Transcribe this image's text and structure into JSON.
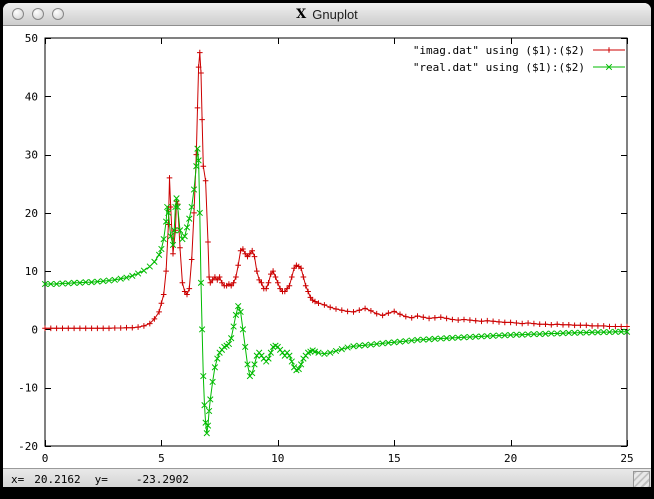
{
  "window": {
    "title": "Gnuplot",
    "title_icon": "X",
    "buttons": [
      "close",
      "minimize",
      "zoom"
    ]
  },
  "statusbar": {
    "x_label": "x=",
    "x_value": "20.2162",
    "y_label": "y=",
    "y_value": "-23.2902"
  },
  "colors": {
    "imag": "#cc0000",
    "real": "#00bb00",
    "axis": "#000000",
    "plot_background": "#ffffff"
  },
  "chart_data": {
    "type": "line",
    "title": "",
    "xlabel": "",
    "ylabel": "",
    "xlim": [
      0,
      25
    ],
    "ylim": [
      -20,
      50
    ],
    "xticks": [
      0,
      5,
      10,
      15,
      20,
      25
    ],
    "yticks": [
      -20,
      -10,
      0,
      10,
      20,
      30,
      40,
      50
    ],
    "grid": false,
    "legend_position": "top-right",
    "series": [
      {
        "name": "\"imag.dat\" using ($1):($2)",
        "color": "#cc0000",
        "marker": "plus",
        "points": [
          [
            0,
            0.2
          ],
          [
            0.25,
            0.2
          ],
          [
            0.5,
            0.2
          ],
          [
            0.75,
            0.2
          ],
          [
            1,
            0.2
          ],
          [
            1.25,
            0.2
          ],
          [
            1.5,
            0.2
          ],
          [
            1.75,
            0.2
          ],
          [
            2,
            0.2
          ],
          [
            2.25,
            0.2
          ],
          [
            2.5,
            0.2
          ],
          [
            2.75,
            0.2
          ],
          [
            3,
            0.25
          ],
          [
            3.25,
            0.25
          ],
          [
            3.5,
            0.3
          ],
          [
            3.75,
            0.3
          ],
          [
            4,
            0.4
          ],
          [
            4.25,
            0.6
          ],
          [
            4.5,
            1
          ],
          [
            4.7,
            1.8
          ],
          [
            4.9,
            3
          ],
          [
            5,
            4.5
          ],
          [
            5.1,
            6
          ],
          [
            5.2,
            10
          ],
          [
            5.3,
            18
          ],
          [
            5.35,
            26
          ],
          [
            5.4,
            21
          ],
          [
            5.5,
            13
          ],
          [
            5.6,
            17
          ],
          [
            5.65,
            22
          ],
          [
            5.7,
            21.5
          ],
          [
            5.8,
            14
          ],
          [
            5.9,
            8
          ],
          [
            6,
            6.5
          ],
          [
            6.1,
            6
          ],
          [
            6.2,
            7
          ],
          [
            6.3,
            12
          ],
          [
            6.4,
            20
          ],
          [
            6.5,
            30
          ],
          [
            6.55,
            38
          ],
          [
            6.6,
            45
          ],
          [
            6.65,
            47.5
          ],
          [
            6.7,
            44
          ],
          [
            6.75,
            36
          ],
          [
            6.8,
            28
          ],
          [
            6.9,
            25.5
          ],
          [
            7,
            15
          ],
          [
            7.05,
            9
          ],
          [
            7.1,
            8
          ],
          [
            7.2,
            8.5
          ],
          [
            7.3,
            9
          ],
          [
            7.4,
            8.5
          ],
          [
            7.5,
            9
          ],
          [
            7.6,
            8
          ],
          [
            7.7,
            7.5
          ],
          [
            7.8,
            7.5
          ],
          [
            7.9,
            7.8
          ],
          [
            8,
            7.5
          ],
          [
            8.1,
            8
          ],
          [
            8.2,
            9
          ],
          [
            8.3,
            11
          ],
          [
            8.4,
            13.5
          ],
          [
            8.5,
            13.8
          ],
          [
            8.6,
            13
          ],
          [
            8.7,
            12.5
          ],
          [
            8.8,
            13
          ],
          [
            8.9,
            13.5
          ],
          [
            9,
            12.5
          ],
          [
            9.1,
            10
          ],
          [
            9.2,
            8.5
          ],
          [
            9.3,
            8
          ],
          [
            9.4,
            7
          ],
          [
            9.5,
            7
          ],
          [
            9.6,
            8
          ],
          [
            9.7,
            9.5
          ],
          [
            9.8,
            10
          ],
          [
            9.9,
            9
          ],
          [
            10,
            8
          ],
          [
            10.1,
            7
          ],
          [
            10.2,
            6.5
          ],
          [
            10.3,
            6.5
          ],
          [
            10.4,
            7
          ],
          [
            10.5,
            7.5
          ],
          [
            10.6,
            9
          ],
          [
            10.7,
            10.5
          ],
          [
            10.8,
            11
          ],
          [
            10.9,
            10.8
          ],
          [
            11,
            10.5
          ],
          [
            11.1,
            9
          ],
          [
            11.2,
            7.5
          ],
          [
            11.3,
            6.5
          ],
          [
            11.4,
            5.5
          ],
          [
            11.5,
            5
          ],
          [
            11.6,
            4.8
          ],
          [
            11.75,
            4.5
          ],
          [
            12,
            4.2
          ],
          [
            12.25,
            3.8
          ],
          [
            12.5,
            3.5
          ],
          [
            12.75,
            3.3
          ],
          [
            13,
            3.1
          ],
          [
            13.25,
            3
          ],
          [
            13.5,
            3.3
          ],
          [
            13.75,
            3.6
          ],
          [
            14,
            3.2
          ],
          [
            14.25,
            2.7
          ],
          [
            14.5,
            2.4
          ],
          [
            14.75,
            2.8
          ],
          [
            15,
            3.1
          ],
          [
            15.25,
            2.6
          ],
          [
            15.5,
            2.2
          ],
          [
            15.75,
            2
          ],
          [
            16,
            2.3
          ],
          [
            16.25,
            2.1
          ],
          [
            16.5,
            1.9
          ],
          [
            16.75,
            2
          ],
          [
            17,
            2.1
          ],
          [
            17.25,
            1.9
          ],
          [
            17.5,
            1.7
          ],
          [
            17.75,
            1.6
          ],
          [
            18,
            1.7
          ],
          [
            18.25,
            1.6
          ],
          [
            18.5,
            1.5
          ],
          [
            18.75,
            1.4
          ],
          [
            19,
            1.5
          ],
          [
            19.25,
            1.4
          ],
          [
            19.5,
            1.3
          ],
          [
            19.75,
            1.2
          ],
          [
            20,
            1.2
          ],
          [
            20.25,
            1.1
          ],
          [
            20.5,
            1
          ],
          [
            20.75,
            1.1
          ],
          [
            21,
            1
          ],
          [
            21.25,
            0.9
          ],
          [
            21.5,
            0.9
          ],
          [
            21.75,
            0.8
          ],
          [
            22,
            0.9
          ],
          [
            22.25,
            0.8
          ],
          [
            22.5,
            0.8
          ],
          [
            22.75,
            0.7
          ],
          [
            23,
            0.7
          ],
          [
            23.25,
            0.7
          ],
          [
            23.5,
            0.6
          ],
          [
            23.75,
            0.6
          ],
          [
            24,
            0.6
          ],
          [
            24.25,
            0.5
          ],
          [
            24.5,
            0.5
          ],
          [
            24.75,
            0.5
          ],
          [
            25,
            0.5
          ]
        ]
      },
      {
        "name": "\"real.dat\" using ($1):($2)",
        "color": "#00bb00",
        "marker": "cross",
        "points": [
          [
            0,
            7.8
          ],
          [
            0.25,
            7.8
          ],
          [
            0.5,
            7.8
          ],
          [
            0.75,
            7.9
          ],
          [
            1,
            7.9
          ],
          [
            1.25,
            8
          ],
          [
            1.5,
            8
          ],
          [
            1.75,
            8.1
          ],
          [
            2,
            8.1
          ],
          [
            2.25,
            8.2
          ],
          [
            2.5,
            8.3
          ],
          [
            2.75,
            8.4
          ],
          [
            3,
            8.5
          ],
          [
            3.25,
            8.7
          ],
          [
            3.5,
            8.9
          ],
          [
            3.75,
            9.2
          ],
          [
            4,
            9.6
          ],
          [
            4.25,
            10.1
          ],
          [
            4.5,
            10.8
          ],
          [
            4.7,
            11.6
          ],
          [
            4.9,
            12.8
          ],
          [
            5,
            13.8
          ],
          [
            5.1,
            15.5
          ],
          [
            5.2,
            18.5
          ],
          [
            5.25,
            21
          ],
          [
            5.3,
            20
          ],
          [
            5.4,
            16
          ],
          [
            5.5,
            14.5
          ],
          [
            5.55,
            17
          ],
          [
            5.6,
            21
          ],
          [
            5.65,
            22.5
          ],
          [
            5.7,
            21
          ],
          [
            5.8,
            17
          ],
          [
            5.9,
            15.5
          ],
          [
            6,
            16
          ],
          [
            6.1,
            17.5
          ],
          [
            6.2,
            19
          ],
          [
            6.3,
            21
          ],
          [
            6.4,
            24
          ],
          [
            6.5,
            28
          ],
          [
            6.55,
            31
          ],
          [
            6.6,
            29
          ],
          [
            6.65,
            20
          ],
          [
            6.7,
            8
          ],
          [
            6.75,
            0
          ],
          [
            6.8,
            -8
          ],
          [
            6.85,
            -13
          ],
          [
            6.9,
            -16
          ],
          [
            6.95,
            -17.8
          ],
          [
            7,
            -16.5
          ],
          [
            7.05,
            -14
          ],
          [
            7.1,
            -12
          ],
          [
            7.2,
            -9
          ],
          [
            7.3,
            -6.5
          ],
          [
            7.4,
            -5
          ],
          [
            7.5,
            -4
          ],
          [
            7.6,
            -3.5
          ],
          [
            7.7,
            -3
          ],
          [
            7.8,
            -2.8
          ],
          [
            7.9,
            -2.5
          ],
          [
            8,
            -1.5
          ],
          [
            8.1,
            0.5
          ],
          [
            8.2,
            2.5
          ],
          [
            8.3,
            4
          ],
          [
            8.4,
            3
          ],
          [
            8.5,
            0
          ],
          [
            8.6,
            -3
          ],
          [
            8.7,
            -6
          ],
          [
            8.8,
            -8
          ],
          [
            8.9,
            -7.5
          ],
          [
            9,
            -6
          ],
          [
            9.1,
            -4.5
          ],
          [
            9.2,
            -4
          ],
          [
            9.3,
            -4.5
          ],
          [
            9.4,
            -5
          ],
          [
            9.5,
            -5.5
          ],
          [
            9.6,
            -5
          ],
          [
            9.7,
            -4
          ],
          [
            9.8,
            -3
          ],
          [
            9.9,
            -2.8
          ],
          [
            10,
            -3
          ],
          [
            10.1,
            -3.5
          ],
          [
            10.2,
            -4
          ],
          [
            10.3,
            -4.5
          ],
          [
            10.4,
            -4
          ],
          [
            10.5,
            -4.5
          ],
          [
            10.6,
            -5.5
          ],
          [
            10.7,
            -6.5
          ],
          [
            10.8,
            -7
          ],
          [
            10.9,
            -6.8
          ],
          [
            11,
            -6
          ],
          [
            11.1,
            -5
          ],
          [
            11.2,
            -4.5
          ],
          [
            11.3,
            -4
          ],
          [
            11.4,
            -3.8
          ],
          [
            11.5,
            -3.6
          ],
          [
            11.6,
            -3.8
          ],
          [
            11.75,
            -4
          ],
          [
            12,
            -4.2
          ],
          [
            12.25,
            -4
          ],
          [
            12.5,
            -3.7
          ],
          [
            12.75,
            -3.4
          ],
          [
            13,
            -3.1
          ],
          [
            13.25,
            -2.9
          ],
          [
            13.5,
            -2.8
          ],
          [
            13.75,
            -2.7
          ],
          [
            14,
            -2.6
          ],
          [
            14.25,
            -2.5
          ],
          [
            14.5,
            -2.4
          ],
          [
            14.75,
            -2.3
          ],
          [
            15,
            -2.2
          ],
          [
            15.25,
            -2.1
          ],
          [
            15.5,
            -2
          ],
          [
            15.75,
            -1.9
          ],
          [
            16,
            -1.8
          ],
          [
            16.25,
            -1.75
          ],
          [
            16.5,
            -1.7
          ],
          [
            16.75,
            -1.6
          ],
          [
            17,
            -1.55
          ],
          [
            17.25,
            -1.5
          ],
          [
            17.5,
            -1.45
          ],
          [
            17.75,
            -1.4
          ],
          [
            18,
            -1.35
          ],
          [
            18.25,
            -1.3
          ],
          [
            18.5,
            -1.25
          ],
          [
            18.75,
            -1.2
          ],
          [
            19,
            -1.15
          ],
          [
            19.25,
            -1.1
          ],
          [
            19.5,
            -1.05
          ],
          [
            19.75,
            -1
          ],
          [
            20,
            -0.95
          ],
          [
            20.25,
            -0.9
          ],
          [
            20.5,
            -0.9
          ],
          [
            20.75,
            -0.85
          ],
          [
            21,
            -0.8
          ],
          [
            21.25,
            -0.8
          ],
          [
            21.5,
            -0.75
          ],
          [
            21.75,
            -0.7
          ],
          [
            22,
            -0.7
          ],
          [
            22.25,
            -0.65
          ],
          [
            22.5,
            -0.6
          ],
          [
            22.75,
            -0.6
          ],
          [
            23,
            -0.55
          ],
          [
            23.25,
            -0.55
          ],
          [
            23.5,
            -0.5
          ],
          [
            23.75,
            -0.5
          ],
          [
            24,
            -0.45
          ],
          [
            24.25,
            -0.45
          ],
          [
            24.5,
            -0.4
          ],
          [
            24.75,
            -0.4
          ],
          [
            25,
            -0.4
          ]
        ]
      }
    ]
  }
}
